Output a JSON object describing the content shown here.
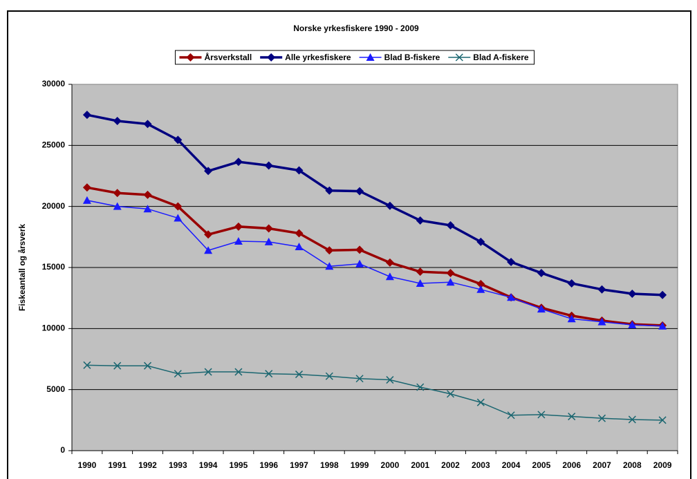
{
  "chart_data": {
    "type": "line",
    "title": "Norske yrkesfiskere 1990 - 2009",
    "y_label": "Fiskeantall og årsverk",
    "categories": [
      "1990",
      "1991",
      "1992",
      "1993",
      "1994",
      "1995",
      "1996",
      "1997",
      "1998",
      "1999",
      "2000",
      "2001",
      "2002",
      "2003",
      "2004",
      "2005",
      "2006",
      "2007",
      "2008",
      "2009"
    ],
    "series": [
      {
        "name": "Årsverkstall",
        "color": "#990000",
        "marker": "diamond",
        "values": [
          21550,
          21100,
          20950,
          20000,
          17700,
          18350,
          18200,
          17800,
          16400,
          16450,
          15400,
          14650,
          14550,
          13650,
          12550,
          11700,
          11050,
          10650,
          10350,
          10250
        ]
      },
      {
        "name": "Alle yrkesfiskere",
        "color": "#000080",
        "marker": "diamond",
        "values": [
          27500,
          27000,
          26750,
          25450,
          22900,
          23650,
          23350,
          22950,
          21300,
          21250,
          20050,
          18850,
          18450,
          17100,
          15450,
          14550,
          13700,
          13200,
          12850,
          12750
        ]
      },
      {
        "name": "Blad B-fiskere",
        "color": "#1a1aff",
        "marker": "triangle",
        "values": [
          20500,
          20000,
          19800,
          19050,
          16400,
          17150,
          17100,
          16700,
          15100,
          15300,
          14250,
          13700,
          13800,
          13200,
          12550,
          11600,
          10800,
          10550,
          10300,
          10200
        ]
      },
      {
        "name": "Blad A-fiskere",
        "color": "#1a6670",
        "marker": "x",
        "values": [
          7000,
          6950,
          6950,
          6300,
          6450,
          6450,
          6300,
          6250,
          6100,
          5900,
          5800,
          5200,
          4650,
          3950,
          2900,
          2950,
          2800,
          2650,
          2550,
          2500
        ]
      }
    ],
    "ylim": [
      0,
      30000
    ],
    "yticks": [
      0,
      5000,
      10000,
      15000,
      20000,
      25000,
      30000
    ],
    "grid": true,
    "legend": "top"
  }
}
